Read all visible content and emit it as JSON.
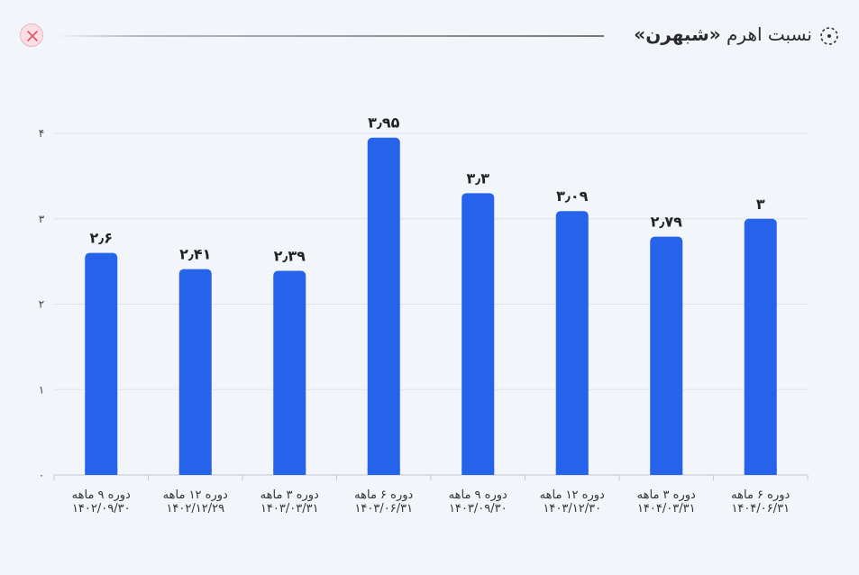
{
  "header": {
    "title_prefix": "نسبت اهرم",
    "title_name": "«شبهرن»",
    "settings_icon": "dotted-circle-icon",
    "close_icon": "close-icon",
    "close_color": "#e0506a"
  },
  "chart_data": {
    "type": "bar",
    "title": "نسبت اهرم «شبهرن»",
    "xlabel": "",
    "ylabel": "",
    "ylim": [
      0,
      4
    ],
    "y_ticks": [
      0,
      1,
      2,
      3,
      4
    ],
    "y_tick_labels": [
      "۰",
      "۱",
      "۲",
      "۳",
      "۴"
    ],
    "grid": true,
    "bar_color": "#2563eb",
    "categories": [
      [
        "دوره ۹ ماهه",
        "۱۴۰۲/۰۹/۳۰"
      ],
      [
        "دوره ۱۲ ماهه",
        "۱۴۰۲/۱۲/۲۹"
      ],
      [
        "دوره ۳ ماهه",
        "۱۴۰۳/۰۳/۳۱"
      ],
      [
        "دوره ۶ ماهه",
        "۱۴۰۳/۰۶/۳۱"
      ],
      [
        "دوره ۹ ماهه",
        "۱۴۰۳/۰۹/۳۰"
      ],
      [
        "دوره ۱۲ ماهه",
        "۱۴۰۳/۱۲/۳۰"
      ],
      [
        "دوره ۳ ماهه",
        "۱۴۰۴/۰۳/۳۱"
      ],
      [
        "دوره ۶ ماهه",
        "۱۴۰۴/۰۶/۳۱"
      ]
    ],
    "values": [
      2.6,
      2.41,
      2.39,
      3.95,
      3.3,
      3.09,
      2.79,
      3
    ],
    "value_labels": [
      "۲٫۶",
      "۲٫۴۱",
      "۲٫۳۹",
      "۳٫۹۵",
      "۳٫۳",
      "۳٫۰۹",
      "۲٫۷۹",
      "۳"
    ]
  }
}
